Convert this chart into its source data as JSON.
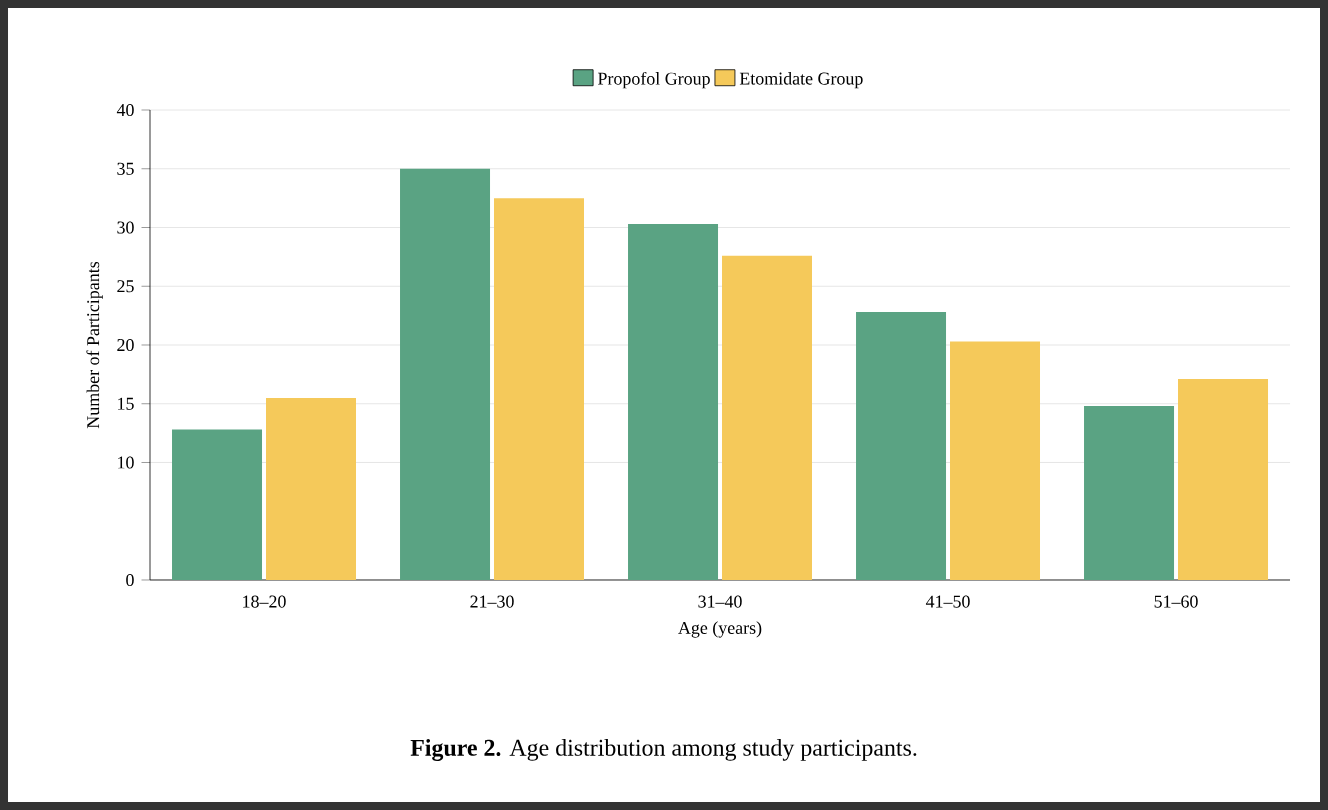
{
  "chart_data": {
    "type": "bar",
    "xlabel": "Age (years)",
    "ylabel": "Number of Participants",
    "categories": [
      "18–20",
      "21–30",
      "31–40",
      "41–50",
      "51–60"
    ],
    "series": [
      {
        "name": "Propofol Group",
        "color": "#5aa383",
        "values": [
          12.8,
          35,
          30.3,
          22.8,
          14.8
        ]
      },
      {
        "name": "Etomidate Group",
        "color": "#f5c95a",
        "values": [
          15.5,
          32.5,
          27.6,
          20.3,
          17.1
        ]
      }
    ],
    "ylim": [
      0,
      40
    ],
    "yticks": [
      0,
      10,
      15,
      20,
      25,
      30,
      35,
      40
    ],
    "grid": "y",
    "legend": "top",
    "annotations": [
      "**Figure 2.** Age distribution among study participants."
    ]
  }
}
